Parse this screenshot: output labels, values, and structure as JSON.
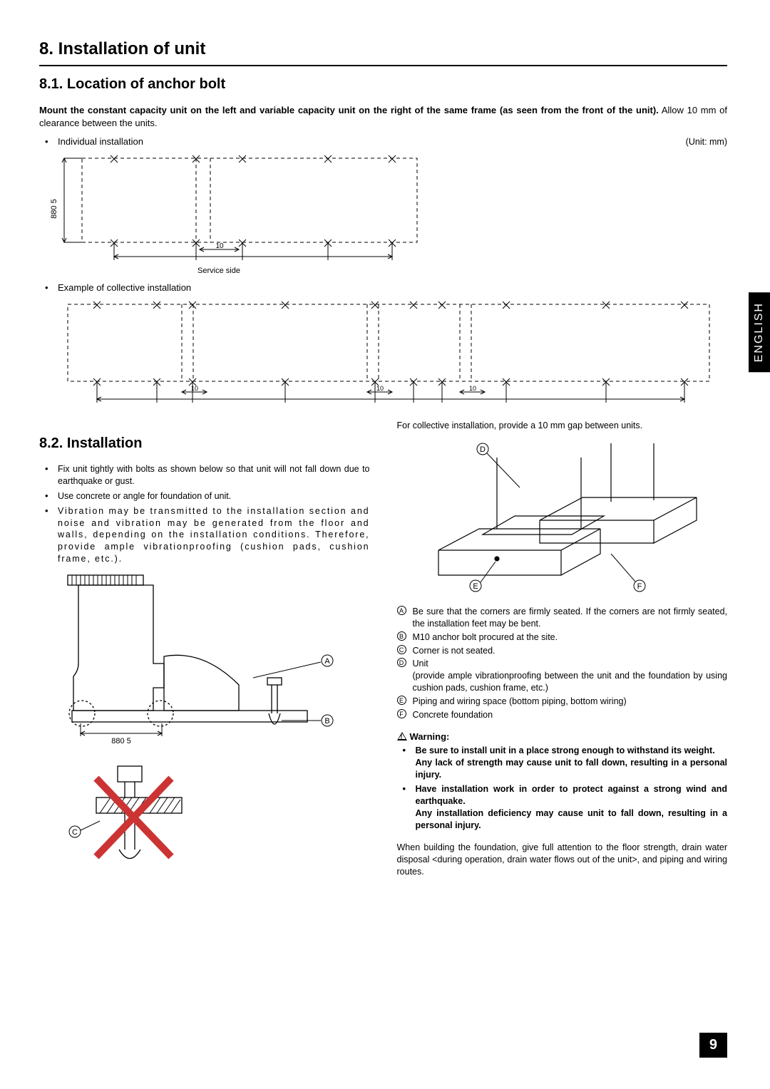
{
  "h1": "8. Installation of unit",
  "s81": {
    "title": "8.1.  Location of anchor bolt",
    "lead_bold": "Mount the constant capacity unit on the left and variable capacity unit on the right of the same frame (as seen from the front of the unit).",
    "lead_rest": " Allow 10 mm of clearance between the units.",
    "label_individual": "Individual installation",
    "unit_note": "(Unit: mm)",
    "label_collective": "Example of collective installation",
    "gap_note": "For collective installation, provide a 10 mm gap between units.",
    "diagram1": {
      "dim_v": "880  5",
      "gap": "10",
      "service": "Service side"
    },
    "diagram2": {
      "gap": "10"
    }
  },
  "s82": {
    "title": "8.2.  Installation",
    "bullets": [
      "Fix unit tightly with bolts as shown below so that unit will not fall down due to earthquake or gust.",
      "Use concrete or angle for foundation of unit.",
      "Vibration may be transmitted to the installation section and noise and vibration may be generated from the floor and walls, depending on the installation conditions. Therefore, provide ample vibrationproofing (cushion pads, cushion frame, etc.)."
    ],
    "fig_left": {
      "dim": "880  5",
      "A": "A",
      "B": "B",
      "C": "C"
    },
    "fig_right": {
      "D": "D",
      "E": "E",
      "F": "F"
    },
    "legend": [
      {
        "sym": "A",
        "text": "Be sure that the corners are firmly seated. If the corners are not firmly seated, the installation feet may be bent."
      },
      {
        "sym": "B",
        "text": "M10 anchor bolt procured at the site."
      },
      {
        "sym": "C",
        "text": "Corner is not seated."
      },
      {
        "sym": "D",
        "text": "Unit\n(provide ample vibrationproofing between the unit and the foundation by using cushion pads, cushion frame, etc.)"
      },
      {
        "sym": "E",
        "text": "Piping and wiring space (bottom piping, bottom wiring)"
      },
      {
        "sym": "F",
        "text": "Concrete foundation"
      }
    ],
    "warning_title": "Warning:",
    "warnings": [
      "Be sure to install unit in a place strong enough to withstand its weight.\nAny lack of strength may cause unit to fall down, resulting in a personal injury.",
      "Have installation work in order to protect against a strong wind and earthquake.\nAny installation deficiency may cause unit to fall down, resulting in a personal injury."
    ],
    "tail": "When building the foundation, give full attention to the floor strength, drain water disposal <during operation, drain water flows out of the unit>, and piping and wiring routes."
  },
  "lang": "ENGLISH",
  "page": "9"
}
